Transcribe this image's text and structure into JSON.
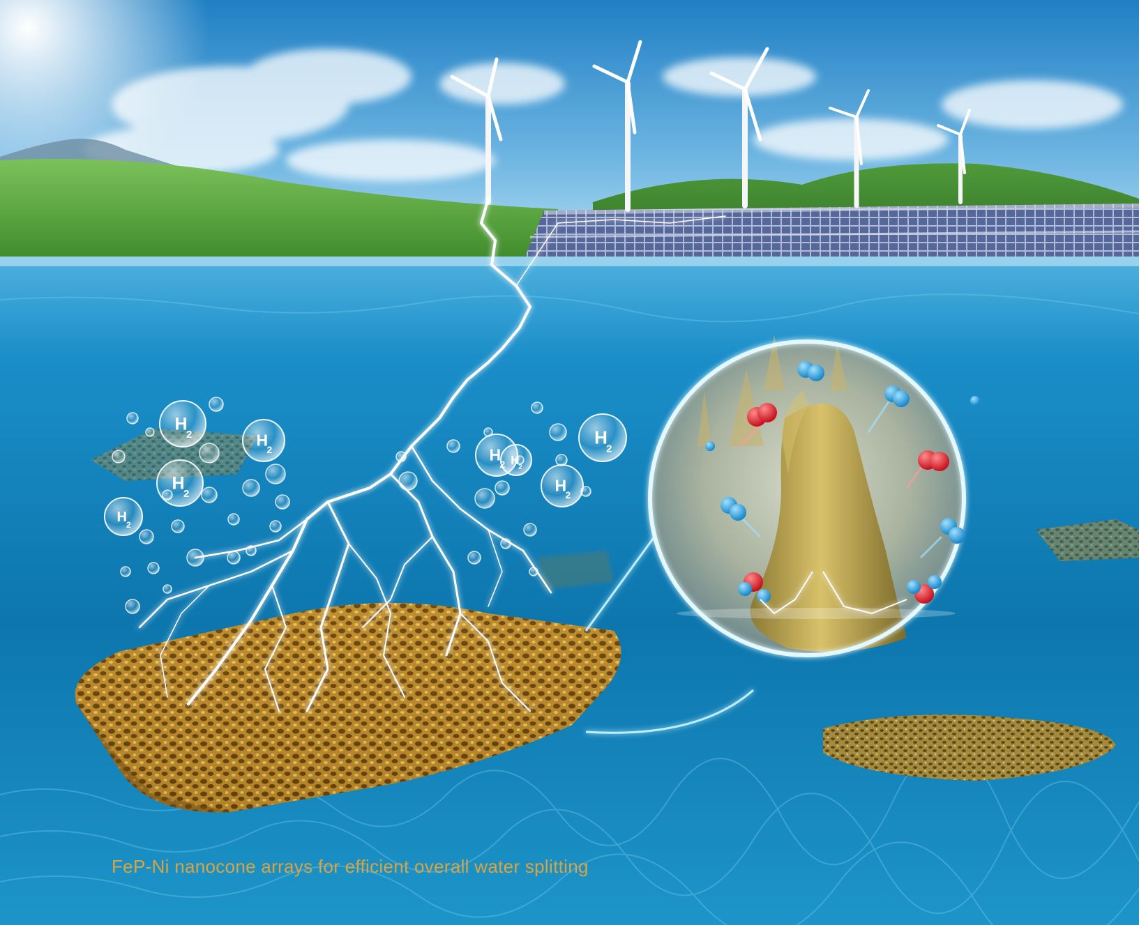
{
  "caption": "FeP-Ni nanocone arrays for efficient overall water splitting",
  "bubble_labels": [
    {
      "main": "H",
      "sub": "2"
    },
    {
      "main": "H",
      "sub": "2"
    },
    {
      "main": "H",
      "sub": "2"
    },
    {
      "main": "H",
      "sub": "2"
    },
    {
      "main": "H",
      "sub": "2"
    },
    {
      "main": "H",
      "sub": "2"
    },
    {
      "main": "H",
      "sub": "2"
    },
    {
      "main": "H",
      "sub": "2"
    }
  ],
  "colors": {
    "sky_top": "#1f7fc4",
    "sky_bottom": "#b9e1f4",
    "grass": "#5ea83c",
    "water": "#1489c4",
    "deep_water": "#0a6fa3",
    "foam": "#c9952f",
    "oxygen": "#e0242f",
    "hydrogen": "#27a6e6",
    "caption": "#d9a441"
  }
}
